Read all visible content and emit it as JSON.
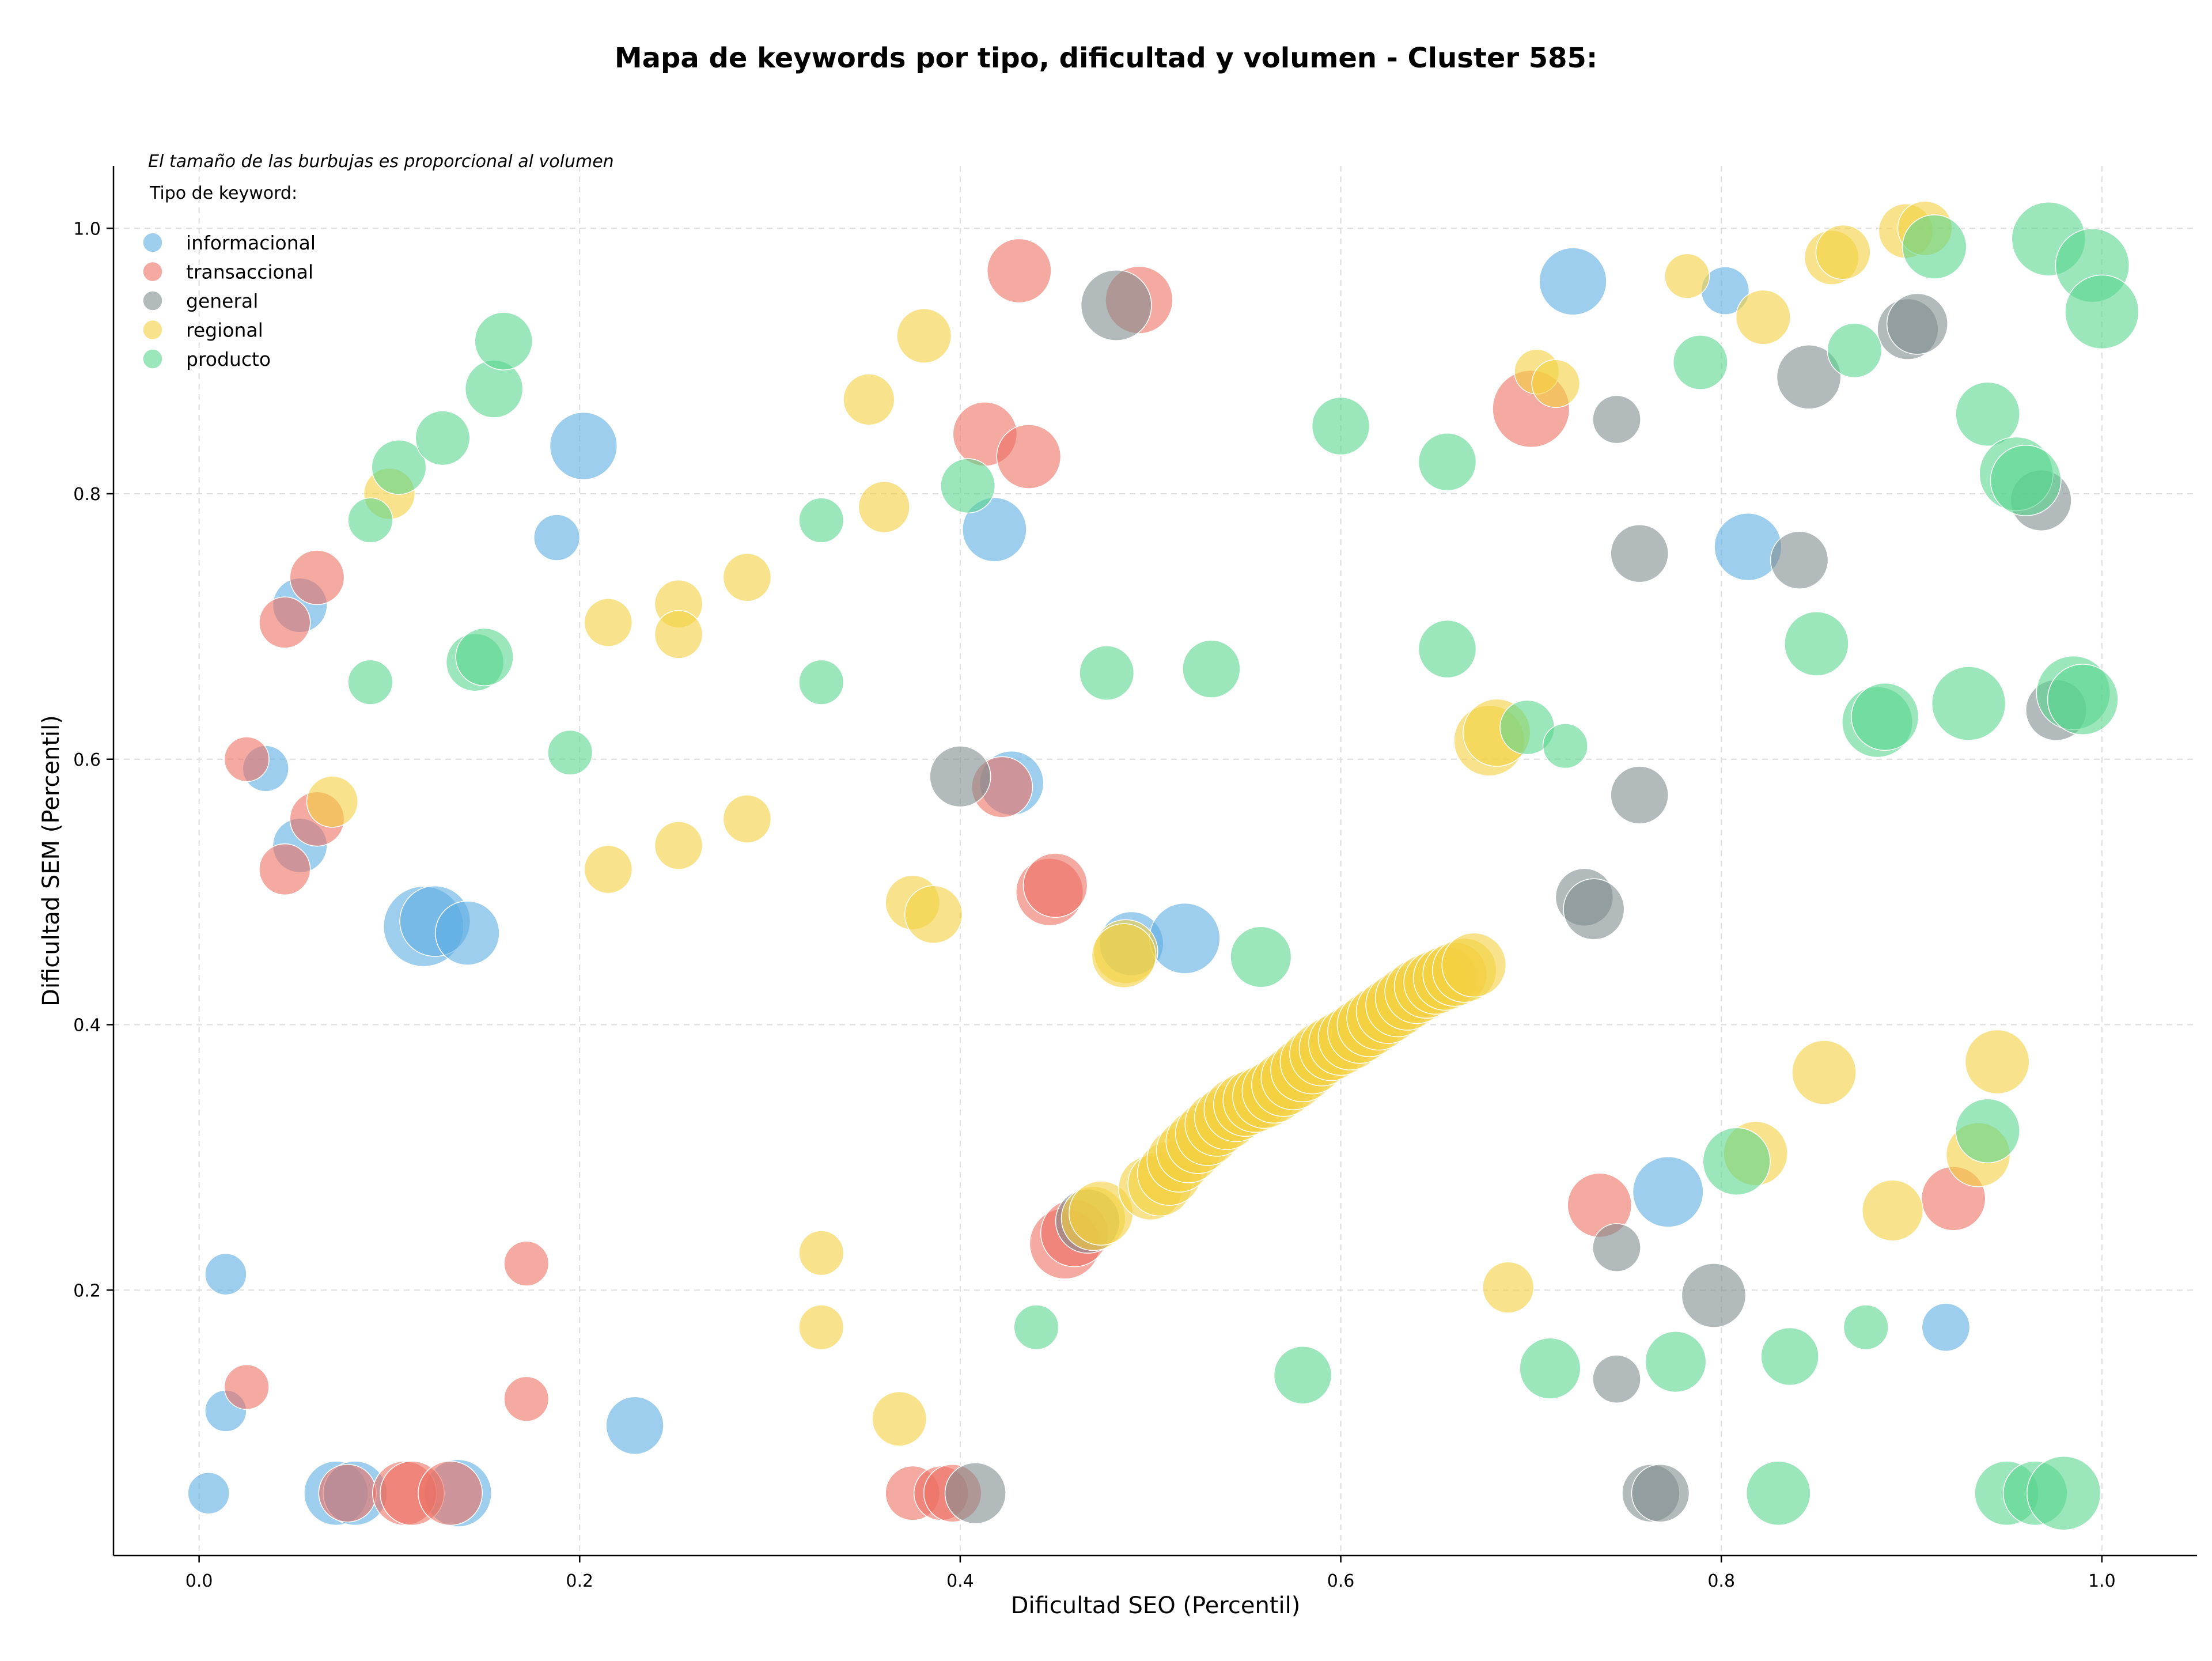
{
  "chart_data": {
    "type": "scatter",
    "title": "Mapa de keywords por tipo, dificultad y volumen - Cluster 585:",
    "xlabel": "Dificultad SEO (Percentil)",
    "ylabel": "Dificultad SEM (Percentil)",
    "annotation": "El tamaño de las burbujas es proporcional al volumen",
    "legend_title": "Tipo de keyword:",
    "legend_position": "top-left",
    "grid": true,
    "xlim": [
      -0.045,
      1.05
    ],
    "ylim": [
      0.0,
      1.047
    ],
    "xticks": [
      "0.0",
      "0.2",
      "0.4",
      "0.6",
      "0.8",
      "1.0"
    ],
    "yticks": [
      "0.2",
      "0.4",
      "0.6",
      "0.8",
      "1.0"
    ],
    "series": [
      {
        "name": "informacional",
        "color": "#5dade2",
        "points": [
          [
            0.005,
            0.047,
            0.25
          ],
          [
            0.014,
            0.212,
            0.25
          ],
          [
            0.014,
            0.109,
            0.25
          ],
          [
            0.035,
            0.593,
            0.32
          ],
          [
            0.053,
            0.535,
            0.45
          ],
          [
            0.053,
            0.716,
            0.45
          ],
          [
            0.118,
            0.474,
            0.85
          ],
          [
            0.124,
            0.478,
            0.7
          ],
          [
            0.141,
            0.469,
            0.6
          ],
          [
            0.188,
            0.767,
            0.32
          ],
          [
            0.202,
            0.836,
            0.65
          ],
          [
            0.229,
            0.098,
            0.5
          ],
          [
            0.072,
            0.047,
            0.6
          ],
          [
            0.082,
            0.047,
            0.6
          ],
          [
            0.136,
            0.047,
            0.65
          ],
          [
            0.418,
            0.773,
            0.6
          ],
          [
            0.427,
            0.582,
            0.6
          ],
          [
            0.49,
            0.461,
            0.6
          ],
          [
            0.518,
            0.465,
            0.7
          ],
          [
            0.722,
            0.96,
            0.65
          ],
          [
            0.772,
            0.274,
            0.7
          ],
          [
            0.802,
            0.953,
            0.35
          ],
          [
            0.814,
            0.76,
            0.65
          ],
          [
            0.918,
            0.172,
            0.35
          ]
        ]
      },
      {
        "name": "transaccional",
        "color": "#ec7063",
        "points": [
          [
            0.025,
            0.6,
            0.3
          ],
          [
            0.025,
            0.127,
            0.3
          ],
          [
            0.045,
            0.703,
            0.4
          ],
          [
            0.045,
            0.517,
            0.4
          ],
          [
            0.062,
            0.737,
            0.45
          ],
          [
            0.062,
            0.555,
            0.45
          ],
          [
            0.078,
            0.047,
            0.5
          ],
          [
            0.108,
            0.047,
            0.6
          ],
          [
            0.112,
            0.047,
            0.6
          ],
          [
            0.132,
            0.047,
            0.6
          ],
          [
            0.172,
            0.22,
            0.3
          ],
          [
            0.172,
            0.118,
            0.3
          ],
          [
            0.375,
            0.047,
            0.45
          ],
          [
            0.39,
            0.047,
            0.45
          ],
          [
            0.396,
            0.047,
            0.5
          ],
          [
            0.413,
            0.845,
            0.6
          ],
          [
            0.422,
            0.579,
            0.55
          ],
          [
            0.431,
            0.968,
            0.6
          ],
          [
            0.436,
            0.828,
            0.6
          ],
          [
            0.447,
            0.5,
            0.65
          ],
          [
            0.45,
            0.505,
            0.6
          ],
          [
            0.455,
            0.235,
            0.7
          ],
          [
            0.46,
            0.243,
            0.65
          ],
          [
            0.494,
            0.946,
            0.65
          ],
          [
            0.7,
            0.864,
            0.8
          ],
          [
            0.736,
            0.264,
            0.6
          ],
          [
            0.922,
            0.269,
            0.6
          ]
        ]
      },
      {
        "name": "general",
        "color": "#7f8c8d",
        "points": [
          [
            0.4,
            0.587,
            0.55
          ],
          [
            0.408,
            0.047,
            0.55
          ],
          [
            0.467,
            0.252,
            0.6
          ],
          [
            0.482,
            0.942,
            0.7
          ],
          [
            0.728,
            0.496,
            0.5
          ],
          [
            0.733,
            0.487,
            0.55
          ],
          [
            0.745,
            0.856,
            0.35
          ],
          [
            0.745,
            0.232,
            0.35
          ],
          [
            0.745,
            0.133,
            0.35
          ],
          [
            0.757,
            0.755,
            0.5
          ],
          [
            0.757,
            0.573,
            0.5
          ],
          [
            0.763,
            0.047,
            0.5
          ],
          [
            0.768,
            0.047,
            0.5
          ],
          [
            0.796,
            0.196,
            0.6
          ],
          [
            0.841,
            0.75,
            0.5
          ],
          [
            0.846,
            0.888,
            0.6
          ],
          [
            0.898,
            0.924,
            0.55
          ],
          [
            0.903,
            0.928,
            0.55
          ],
          [
            0.968,
            0.795,
            0.55
          ],
          [
            0.976,
            0.637,
            0.55
          ]
        ]
      },
      {
        "name": "regional",
        "color": "#f4d03f",
        "points": [
          [
            0.07,
            0.568,
            0.4
          ],
          [
            0.1,
            0.8,
            0.4
          ],
          [
            0.215,
            0.703,
            0.35
          ],
          [
            0.215,
            0.517,
            0.35
          ],
          [
            0.252,
            0.717,
            0.35
          ],
          [
            0.252,
            0.694,
            0.35
          ],
          [
            0.252,
            0.535,
            0.35
          ],
          [
            0.288,
            0.737,
            0.35
          ],
          [
            0.288,
            0.555,
            0.35
          ],
          [
            0.327,
            0.228,
            0.3
          ],
          [
            0.327,
            0.172,
            0.3
          ],
          [
            0.352,
            0.871,
            0.4
          ],
          [
            0.36,
            0.79,
            0.4
          ],
          [
            0.368,
            0.103,
            0.45
          ],
          [
            0.375,
            0.492,
            0.45
          ],
          [
            0.381,
            0.919,
            0.45
          ],
          [
            0.386,
            0.483,
            0.5
          ],
          [
            0.487,
            0.455,
            0.6
          ],
          [
            0.486,
            0.452,
            0.6
          ],
          [
            0.47,
            0.254,
            0.6
          ],
          [
            0.474,
            0.258,
            0.6
          ],
          [
            0.5,
            0.277,
            0.6
          ],
          [
            0.505,
            0.28,
            0.6
          ],
          [
            0.51,
            0.288,
            0.6
          ],
          [
            0.515,
            0.298,
            0.6
          ],
          [
            0.52,
            0.305,
            0.6
          ],
          [
            0.525,
            0.312,
            0.6
          ],
          [
            0.53,
            0.318,
            0.6
          ],
          [
            0.535,
            0.325,
            0.6
          ],
          [
            0.54,
            0.33,
            0.6
          ],
          [
            0.545,
            0.336,
            0.6
          ],
          [
            0.55,
            0.34,
            0.6
          ],
          [
            0.555,
            0.343,
            0.6
          ],
          [
            0.56,
            0.346,
            0.6
          ],
          [
            0.565,
            0.35,
            0.6
          ],
          [
            0.57,
            0.355,
            0.6
          ],
          [
            0.575,
            0.36,
            0.6
          ],
          [
            0.58,
            0.366,
            0.6
          ],
          [
            0.585,
            0.372,
            0.6
          ],
          [
            0.59,
            0.378,
            0.6
          ],
          [
            0.595,
            0.382,
            0.6
          ],
          [
            0.6,
            0.386,
            0.6
          ],
          [
            0.605,
            0.39,
            0.6
          ],
          [
            0.61,
            0.395,
            0.6
          ],
          [
            0.615,
            0.4,
            0.6
          ],
          [
            0.62,
            0.405,
            0.6
          ],
          [
            0.625,
            0.41,
            0.6
          ],
          [
            0.63,
            0.415,
            0.6
          ],
          [
            0.635,
            0.42,
            0.6
          ],
          [
            0.64,
            0.425,
            0.6
          ],
          [
            0.645,
            0.429,
            0.6
          ],
          [
            0.65,
            0.432,
            0.6
          ],
          [
            0.655,
            0.435,
            0.6
          ],
          [
            0.66,
            0.438,
            0.6
          ],
          [
            0.665,
            0.441,
            0.6
          ],
          [
            0.67,
            0.445,
            0.6
          ],
          [
            0.678,
            0.614,
            0.7
          ],
          [
            0.682,
            0.62,
            0.65
          ],
          [
            0.688,
            0.202,
            0.4
          ],
          [
            0.703,
            0.892,
            0.3
          ],
          [
            0.713,
            0.883,
            0.35
          ],
          [
            0.782,
            0.964,
            0.3
          ],
          [
            0.822,
            0.933,
            0.45
          ],
          [
            0.818,
            0.303,
            0.6
          ],
          [
            0.854,
            0.364,
            0.6
          ],
          [
            0.858,
            0.978,
            0.45
          ],
          [
            0.864,
            0.982,
            0.45
          ],
          [
            0.89,
            0.26,
            0.55
          ],
          [
            0.897,
            0.998,
            0.45
          ],
          [
            0.907,
            1.0,
            0.45
          ],
          [
            0.935,
            0.302,
            0.6
          ],
          [
            0.945,
            0.372,
            0.6
          ]
        ]
      },
      {
        "name": "producto",
        "color": "#58d68d",
        "points": [
          [
            0.09,
            0.78,
            0.3
          ],
          [
            0.09,
            0.658,
            0.3
          ],
          [
            0.105,
            0.82,
            0.45
          ],
          [
            0.128,
            0.842,
            0.45
          ],
          [
            0.145,
            0.673,
            0.5
          ],
          [
            0.15,
            0.677,
            0.5
          ],
          [
            0.155,
            0.879,
            0.5
          ],
          [
            0.16,
            0.915,
            0.5
          ],
          [
            0.195,
            0.605,
            0.3
          ],
          [
            0.327,
            0.78,
            0.3
          ],
          [
            0.327,
            0.658,
            0.3
          ],
          [
            0.404,
            0.806,
            0.45
          ],
          [
            0.44,
            0.172,
            0.3
          ],
          [
            0.477,
            0.665,
            0.45
          ],
          [
            0.532,
            0.668,
            0.5
          ],
          [
            0.558,
            0.451,
            0.55
          ],
          [
            0.58,
            0.136,
            0.5
          ],
          [
            0.6,
            0.851,
            0.5
          ],
          [
            0.656,
            0.824,
            0.5
          ],
          [
            0.656,
            0.683,
            0.5
          ],
          [
            0.698,
            0.624,
            0.45
          ],
          [
            0.71,
            0.141,
            0.55
          ],
          [
            0.718,
            0.61,
            0.3
          ],
          [
            0.776,
            0.146,
            0.55
          ],
          [
            0.789,
            0.899,
            0.45
          ],
          [
            0.808,
            0.297,
            0.65
          ],
          [
            0.83,
            0.047,
            0.6
          ],
          [
            0.836,
            0.15,
            0.5
          ],
          [
            0.85,
            0.687,
            0.6
          ],
          [
            0.87,
            0.908,
            0.45
          ],
          [
            0.876,
            0.172,
            0.3
          ],
          [
            0.882,
            0.628,
            0.7
          ],
          [
            0.886,
            0.632,
            0.65
          ],
          [
            0.912,
            0.986,
            0.6
          ],
          [
            0.93,
            0.642,
            0.75
          ],
          [
            0.94,
            0.32,
            0.6
          ],
          [
            0.94,
            0.86,
            0.6
          ],
          [
            0.95,
            0.047,
            0.6
          ],
          [
            0.955,
            0.815,
            0.75
          ],
          [
            0.96,
            0.81,
            0.7
          ],
          [
            0.965,
            0.047,
            0.6
          ],
          [
            0.972,
            0.992,
            0.75
          ],
          [
            0.98,
            0.047,
            0.75
          ],
          [
            0.985,
            0.65,
            0.75
          ],
          [
            0.99,
            0.645,
            0.7
          ],
          [
            0.995,
            0.972,
            0.75
          ],
          [
            1.0,
            0.937,
            0.75
          ]
        ]
      }
    ]
  }
}
